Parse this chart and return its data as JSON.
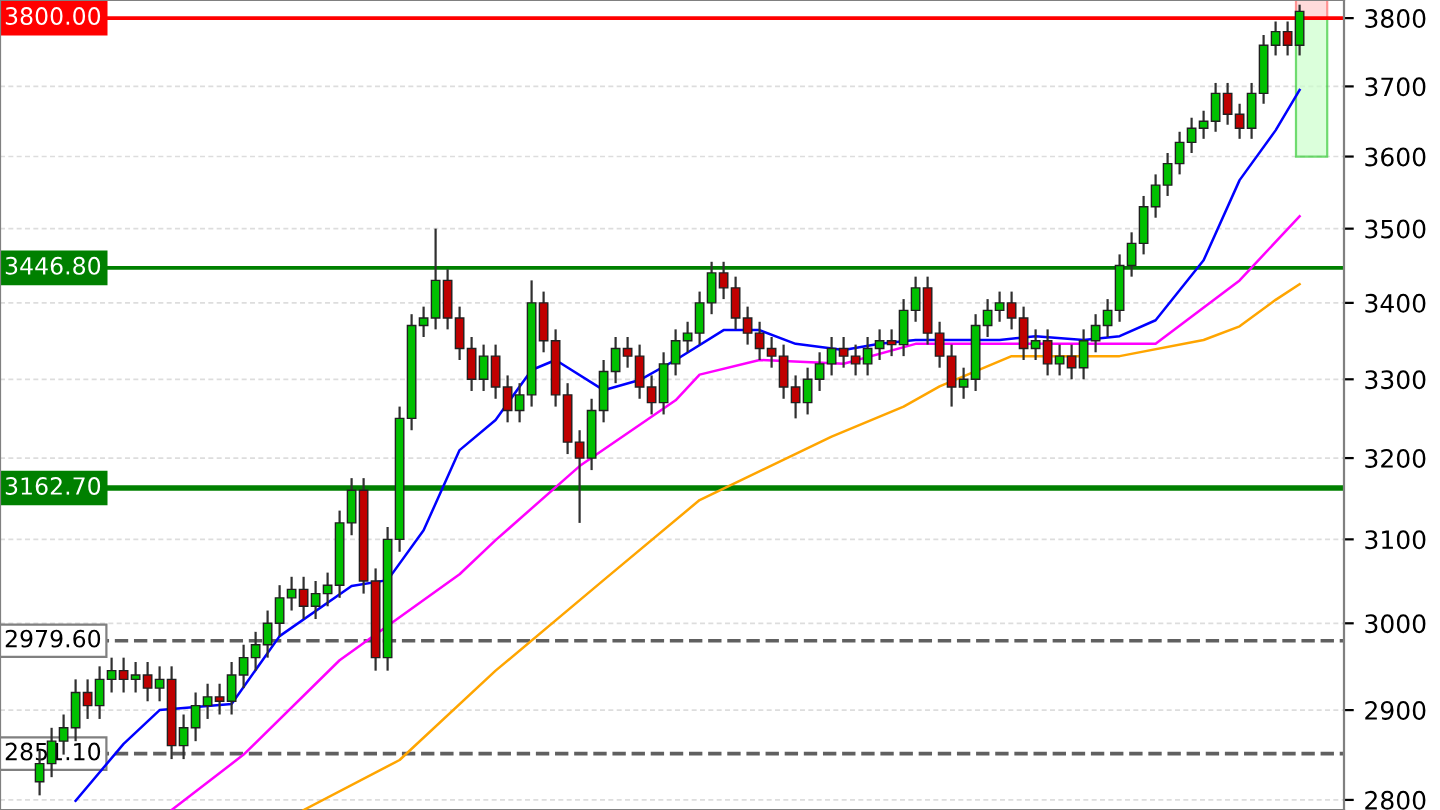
{
  "chart_data": {
    "type": "candlestick",
    "categories": [
      null,
      null,
      null,
      null,
      null,
      null,
      null,
      null,
      null,
      null,
      null,
      null,
      null,
      null,
      null,
      null,
      null,
      null,
      null,
      null,
      null,
      null,
      null,
      null,
      null,
      null,
      null,
      null,
      null,
      null,
      null,
      null,
      null,
      null,
      null,
      null,
      null,
      null,
      null,
      null,
      null,
      null,
      null,
      null,
      null,
      null,
      null,
      null,
      null,
      null,
      null,
      null,
      null,
      null,
      null,
      null,
      null,
      null,
      null,
      null,
      null,
      null,
      null,
      null,
      null,
      null,
      null,
      null,
      null,
      null,
      null,
      null,
      null,
      null,
      null,
      null,
      null,
      null,
      null,
      null,
      null,
      null,
      null,
      null,
      null,
      null,
      null,
      null,
      null,
      null,
      null,
      null,
      null,
      null,
      null,
      null,
      null,
      null,
      null,
      null,
      null,
      null,
      null,
      null,
      null,
      null
    ],
    "ohlc": [
      [
        2820,
        2855,
        2805,
        2840
      ],
      [
        2840,
        2880,
        2825,
        2865
      ],
      [
        2865,
        2895,
        2850,
        2880
      ],
      [
        2880,
        2935,
        2865,
        2920
      ],
      [
        2920,
        2935,
        2890,
        2905
      ],
      [
        2905,
        2950,
        2890,
        2935
      ],
      [
        2935,
        2960,
        2920,
        2945
      ],
      [
        2945,
        2960,
        2920,
        2935
      ],
      [
        2935,
        2955,
        2920,
        2940
      ],
      [
        2940,
        2955,
        2910,
        2925
      ],
      [
        2925,
        2950,
        2910,
        2935
      ],
      [
        2935,
        2950,
        2845,
        2860
      ],
      [
        2860,
        2895,
        2845,
        2880
      ],
      [
        2880,
        2920,
        2865,
        2905
      ],
      [
        2905,
        2930,
        2890,
        2915
      ],
      [
        2915,
        2930,
        2895,
        2910
      ],
      [
        2910,
        2955,
        2895,
        2940
      ],
      [
        2940,
        2975,
        2925,
        2960
      ],
      [
        2960,
        2990,
        2945,
        2975
      ],
      [
        2975,
        3015,
        2960,
        3000
      ],
      [
        3000,
        3045,
        2985,
        3030
      ],
      [
        3030,
        3055,
        3015,
        3040
      ],
      [
        3040,
        3055,
        3005,
        3020
      ],
      [
        3020,
        3050,
        3005,
        3035
      ],
      [
        3035,
        3060,
        3020,
        3045
      ],
      [
        3045,
        3135,
        3030,
        3120
      ],
      [
        3120,
        3175,
        3105,
        3160
      ],
      [
        3160,
        3175,
        3035,
        3050
      ],
      [
        3050,
        3065,
        2945,
        2960
      ],
      [
        2960,
        3115,
        2945,
        3100
      ],
      [
        3100,
        3265,
        3085,
        3250
      ],
      [
        3250,
        3385,
        3235,
        3370
      ],
      [
        3370,
        3395,
        3355,
        3380
      ],
      [
        3380,
        3500,
        3365,
        3430
      ],
      [
        3430,
        3445,
        3365,
        3380
      ],
      [
        3380,
        3395,
        3325,
        3340
      ],
      [
        3340,
        3355,
        3285,
        3300
      ],
      [
        3300,
        3345,
        3285,
        3330
      ],
      [
        3330,
        3345,
        3275,
        3290
      ],
      [
        3290,
        3305,
        3245,
        3260
      ],
      [
        3260,
        3295,
        3245,
        3280
      ],
      [
        3280,
        3430,
        3265,
        3400
      ],
      [
        3400,
        3415,
        3335,
        3350
      ],
      [
        3350,
        3365,
        3265,
        3280
      ],
      [
        3280,
        3295,
        3205,
        3220
      ],
      [
        3220,
        3235,
        3120,
        3200
      ],
      [
        3200,
        3275,
        3185,
        3260
      ],
      [
        3260,
        3325,
        3245,
        3310
      ],
      [
        3310,
        3355,
        3295,
        3340
      ],
      [
        3340,
        3355,
        3315,
        3330
      ],
      [
        3330,
        3345,
        3275,
        3290
      ],
      [
        3290,
        3305,
        3255,
        3270
      ],
      [
        3270,
        3335,
        3255,
        3320
      ],
      [
        3320,
        3365,
        3305,
        3350
      ],
      [
        3350,
        3375,
        3335,
        3360
      ],
      [
        3360,
        3415,
        3345,
        3400
      ],
      [
        3400,
        3455,
        3385,
        3440
      ],
      [
        3440,
        3455,
        3405,
        3420
      ],
      [
        3420,
        3435,
        3365,
        3380
      ],
      [
        3380,
        3395,
        3345,
        3360
      ],
      [
        3360,
        3375,
        3325,
        3340
      ],
      [
        3340,
        3355,
        3315,
        3330
      ],
      [
        3330,
        3345,
        3275,
        3290
      ],
      [
        3290,
        3305,
        3250,
        3270
      ],
      [
        3270,
        3315,
        3255,
        3300
      ],
      [
        3300,
        3335,
        3285,
        3320
      ],
      [
        3320,
        3355,
        3305,
        3340
      ],
      [
        3340,
        3355,
        3315,
        3330
      ],
      [
        3330,
        3345,
        3305,
        3320
      ],
      [
        3320,
        3355,
        3305,
        3340
      ],
      [
        3340,
        3365,
        3325,
        3350
      ],
      [
        3350,
        3365,
        3330,
        3345
      ],
      [
        3345,
        3405,
        3330,
        3390
      ],
      [
        3390,
        3435,
        3375,
        3420
      ],
      [
        3420,
        3435,
        3345,
        3360
      ],
      [
        3360,
        3375,
        3315,
        3330
      ],
      [
        3330,
        3345,
        3265,
        3290
      ],
      [
        3290,
        3315,
        3275,
        3300
      ],
      [
        3300,
        3385,
        3285,
        3370
      ],
      [
        3370,
        3405,
        3355,
        3390
      ],
      [
        3390,
        3415,
        3375,
        3400
      ],
      [
        3400,
        3415,
        3365,
        3380
      ],
      [
        3380,
        3395,
        3325,
        3340
      ],
      [
        3340,
        3365,
        3325,
        3350
      ],
      [
        3350,
        3365,
        3305,
        3320
      ],
      [
        3320,
        3345,
        3305,
        3330
      ],
      [
        3330,
        3345,
        3300,
        3315
      ],
      [
        3315,
        3365,
        3300,
        3350
      ],
      [
        3350,
        3385,
        3335,
        3370
      ],
      [
        3370,
        3405,
        3355,
        3390
      ],
      [
        3390,
        3465,
        3375,
        3450
      ],
      [
        3450,
        3495,
        3435,
        3480
      ],
      [
        3480,
        3545,
        3465,
        3530
      ],
      [
        3530,
        3575,
        3515,
        3560
      ],
      [
        3560,
        3605,
        3545,
        3590
      ],
      [
        3590,
        3635,
        3575,
        3620
      ],
      [
        3620,
        3655,
        3605,
        3640
      ],
      [
        3640,
        3665,
        3625,
        3650
      ],
      [
        3650,
        3705,
        3635,
        3690
      ],
      [
        3690,
        3705,
        3645,
        3660
      ],
      [
        3660,
        3675,
        3625,
        3640
      ],
      [
        3640,
        3705,
        3625,
        3690
      ],
      [
        3690,
        3775,
        3675,
        3760
      ],
      [
        3760,
        3795,
        3745,
        3780
      ],
      [
        3780,
        3795,
        3745,
        3760
      ],
      [
        3760,
        3820,
        3745,
        3810
      ]
    ],
    "colors": [
      "#00c000",
      "#00c000",
      "#00c000",
      "#00c000",
      "#c00000",
      "#00c000",
      "#00c000",
      "#c00000",
      "#00c000",
      "#c00000",
      "#00c000",
      "#c00000",
      "#00c000",
      "#00c000",
      "#00c000",
      "#c00000",
      "#00c000",
      "#00c000",
      "#00c000",
      "#00c000",
      "#00c000",
      "#00c000",
      "#c00000",
      "#00c000",
      "#00c000",
      "#00c000",
      "#00c000",
      "#c00000",
      "#c00000",
      "#00c000",
      "#00c000",
      "#00c000",
      "#00c000",
      "#00c000",
      "#c00000",
      "#c00000",
      "#c00000",
      "#00c000",
      "#c00000",
      "#c00000",
      "#00c000",
      "#00c000",
      "#c00000",
      "#c00000",
      "#c00000",
      "#c00000",
      "#00c000",
      "#00c000",
      "#00c000",
      "#c00000",
      "#c00000",
      "#c00000",
      "#00c000",
      "#00c000",
      "#00c000",
      "#00c000",
      "#00c000",
      "#c00000",
      "#c00000",
      "#c00000",
      "#c00000",
      "#c00000",
      "#c00000",
      "#c00000",
      "#00c000",
      "#00c000",
      "#00c000",
      "#c00000",
      "#c00000",
      "#00c000",
      "#00c000",
      "#c00000",
      "#00c000",
      "#00c000",
      "#c00000",
      "#c00000",
      "#c00000",
      "#00c000",
      "#00c000",
      "#00c000",
      "#00c000",
      "#c00000",
      "#c00000",
      "#00c000",
      "#c00000",
      "#00c000",
      "#c00000",
      "#00c000",
      "#00c000",
      "#00c000",
      "#00c000",
      "#00c000",
      "#00c000",
      "#00c000",
      "#00c000",
      "#00c000",
      "#00c000",
      "#00c000",
      "#00c000",
      "#c00000",
      "#c00000",
      "#00c000",
      "#00c000",
      "#00c000",
      "#c00000",
      "#00c000"
    ],
    "series": [
      {
        "type": "line",
        "color": "#0000ff",
        "values": [
          null,
          null,
          null,
          2799,
          null,
          null,
          null,
          2862,
          null,
          null,
          2900,
          null,
          null,
          null,
          null,
          null,
          2907,
          null,
          null,
          null,
          2985,
          null,
          null,
          null,
          null,
          null,
          3044,
          null,
          null,
          3051,
          null,
          null,
          3111,
          null,
          null,
          3210,
          null,
          null,
          3248,
          null,
          null,
          3312,
          null,
          3325,
          null,
          null,
          null,
          3286,
          null,
          null,
          3299,
          null,
          null,
          3325,
          null,
          null,
          null,
          3364,
          null,
          null,
          3364,
          null,
          null,
          3346,
          null,
          null,
          null,
          3338,
          null,
          null,
          3346,
          null,
          null,
          3351,
          null,
          null,
          null,
          3351,
          null,
          null,
          3351,
          null,
          null,
          3356,
          null,
          null,
          null,
          3351,
          null,
          null,
          3356,
          null,
          null,
          3377,
          null,
          null,
          null,
          3457,
          null,
          null,
          3567,
          null,
          null,
          3637,
          null,
          3695
        ]
      },
      {
        "type": "line",
        "color": "#ff00ff",
        "values": [
          null,
          null,
          null,
          null,
          null,
          null,
          null,
          null,
          null,
          null,
          null,
          2789,
          null,
          null,
          null,
          null,
          null,
          2850,
          null,
          null,
          null,
          null,
          null,
          null,
          null,
          2957,
          null,
          null,
          null,
          null,
          null,
          null,
          null,
          null,
          null,
          3058,
          null,
          null,
          3099,
          null,
          null,
          null,
          null,
          null,
          null,
          3190,
          null,
          null,
          null,
          null,
          null,
          null,
          null,
          3273,
          null,
          3306,
          null,
          null,
          null,
          null,
          3325,
          null,
          null,
          null,
          null,
          null,
          null,
          3320,
          null,
          null,
          null,
          null,
          null,
          3346,
          null,
          null,
          null,
          null,
          null,
          null,
          null,
          null,
          null,
          null,
          null,
          null,
          null,
          null,
          null,
          null,
          3346,
          null,
          null,
          3346,
          null,
          null,
          null,
          null,
          null,
          null,
          3430,
          null,
          null,
          null,
          null,
          3517
        ]
      },
      {
        "type": "line",
        "color": "#ffa500",
        "values": [
          null,
          null,
          null,
          null,
          null,
          null,
          null,
          null,
          null,
          null,
          null,
          null,
          null,
          null,
          null,
          null,
          null,
          null,
          null,
          null,
          null,
          null,
          2789,
          null,
          null,
          null,
          null,
          null,
          null,
          null,
          2844,
          null,
          null,
          null,
          null,
          null,
          null,
          null,
          2945,
          null,
          null,
          null,
          null,
          null,
          null,
          null,
          null,
          3051,
          null,
          null,
          null,
          null,
          null,
          null,
          null,
          3148,
          null,
          null,
          null,
          null,
          null,
          null,
          null,
          null,
          null,
          null,
          3227,
          null,
          null,
          null,
          null,
          null,
          3265,
          null,
          null,
          3291,
          null,
          null,
          null,
          null,
          null,
          3330,
          null,
          null,
          null,
          null,
          null,
          null,
          null,
          null,
          3330,
          null,
          null,
          null,
          null,
          null,
          null,
          3351,
          null,
          null,
          3369,
          null,
          null,
          3404,
          null,
          3425
        ]
      }
    ],
    "log": "y",
    "ylim": [
      2789,
      3827
    ],
    "yticks": [
      2800,
      2900,
      3000,
      3100,
      3200,
      3300,
      3400,
      3500,
      3600,
      3700,
      3800
    ],
    "tick_labels": "y",
    "grid": "y",
    "ref_lines": [
      {
        "axis": "y",
        "value": 3800,
        "label": "3800.00",
        "color": "#ff0000",
        "line_style": "solid"
      },
      {
        "axis": "y",
        "value": 3446.8,
        "label": "3446.80",
        "color": "#008000",
        "line_style": "solid"
      },
      {
        "axis": "y",
        "value": 3162.7,
        "label": "3162.70",
        "color": "#008000",
        "line_style": "solid"
      },
      {
        "axis": "y",
        "value": 2979.6,
        "label": "2979.60",
        "color": "#606060",
        "line_style": "dashed"
      },
      {
        "axis": "y",
        "value": 2851.1,
        "label": "2851.10",
        "color": "#606060",
        "line_style": "dashed"
      }
    ]
  }
}
